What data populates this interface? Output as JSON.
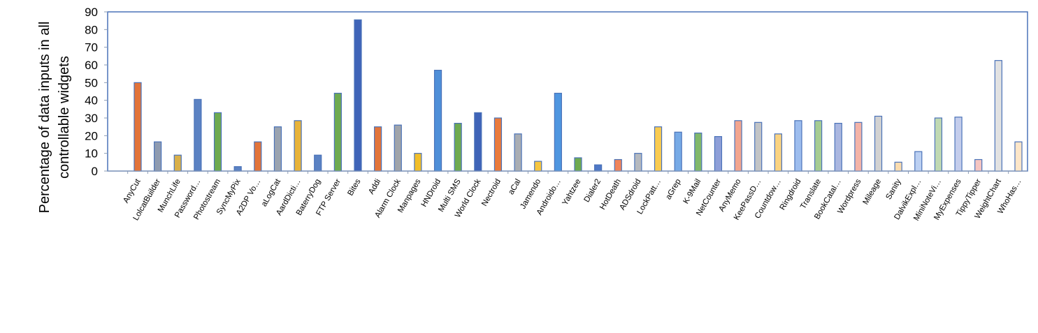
{
  "chart_data": {
    "type": "bar",
    "title": "",
    "xlabel": "",
    "ylabel": [
      "Percentage of data inputs in all",
      "controllable widgets"
    ],
    "ylim": [
      0,
      90
    ],
    "yticks": [
      "0",
      "10",
      "20",
      "30",
      "40",
      "50",
      "60",
      "70",
      "80",
      "90"
    ],
    "grid": false,
    "legend": "none",
    "categories": [
      "AnyCut",
      "LolcatBuilder",
      "MunchLife",
      "Password…",
      "Photostream",
      "SyncMyPix",
      "A2DP Vo…",
      "aLogCat",
      "AardDicti…",
      "BaterryDog",
      "FTP Server",
      "Bites",
      "Addi",
      "Alarm Clock",
      "Manpages",
      "HNDroid",
      "Multi SMS",
      "World Clock",
      "Nectroid",
      "aCal",
      "Jamendo",
      "Androido…",
      "Yahtzee",
      "Dialer2",
      "HotDeath",
      "ADSdroid",
      "LockPatt…",
      "aGrep",
      "K-9Mail",
      "NetCounter",
      "AnyMemo",
      "KeePassD…",
      "Countdow…",
      "Ringdroid",
      "Translate",
      "BookCatal…",
      "Wordpress",
      "Mileage",
      "Sanity",
      "DalvikExpl…",
      "MiniNoteVi…",
      "MyExpenses",
      "TippyTipper",
      "WeightChart",
      "WhoHas…"
    ],
    "values": [
      50,
      16.5,
      9,
      40.5,
      33,
      2.5,
      16.5,
      25,
      28.5,
      9,
      44,
      85.5,
      25,
      26,
      10,
      57,
      27,
      33,
      30,
      21,
      5.5,
      44,
      7.5,
      3.5,
      6.5,
      10,
      25,
      22,
      21.5,
      19.5,
      28.5,
      27.5,
      21,
      28.5,
      28.5,
      27,
      27.5,
      31,
      5,
      11,
      30,
      30.5,
      6.5,
      62.5,
      16.5
    ],
    "bar_colors": [
      "#e2743a",
      "#8f9bb0",
      "#d9b04a",
      "#5b82c3",
      "#6eaa50",
      "#5b82c3",
      "#e2743a",
      "#9aa3b0",
      "#e7b33a",
      "#5b82c3",
      "#6eaa50",
      "#3f64b8",
      "#e2743a",
      "#a0a4aa",
      "#f1be2a",
      "#4f8fd8",
      "#6eaa50",
      "#3f64b8",
      "#ea7a3c",
      "#a9adb3",
      "#f6c640",
      "#4f96e0",
      "#6eaa50",
      "#4f78c6",
      "#f0845a",
      "#b5b9bf",
      "#f9cb50",
      "#77aae6",
      "#81b86a",
      "#8e9fd8",
      "#f2a58e",
      "#c2c4c6",
      "#fad381",
      "#9dbdee",
      "#a5cc92",
      "#aab7e0",
      "#f4b3a7",
      "#d2d2d2",
      "#fbdcae",
      "#bcd0f2",
      "#c0d9b2",
      "#c4cdec",
      "#f6c5c1",
      "#e2e2e2",
      "#fde6c8"
    ]
  }
}
